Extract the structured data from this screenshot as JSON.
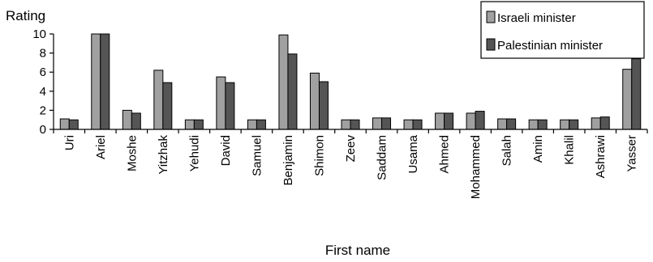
{
  "chart_data": {
    "type": "bar",
    "title": "",
    "xlabel": "First name",
    "ylabel": "Rating",
    "ylim": [
      0,
      10
    ],
    "yticks": [
      0,
      2,
      4,
      6,
      8,
      10
    ],
    "legend_position": "top-right",
    "grid": false,
    "categories": [
      "Uri",
      "Ariel",
      "Moshe",
      "Yitzhak",
      "Yehudi",
      "David",
      "Samuel",
      "Benjamin",
      "Shimon",
      "Zeev",
      "Saddam",
      "Usama",
      "Ahmed",
      "Mohammed",
      "Salah",
      "Amin",
      "Khalil",
      "Ashrawi",
      "Yasser"
    ],
    "series": [
      {
        "name": "Israeli minister",
        "color": "#a0a0a0",
        "values": [
          1.1,
          10.0,
          2.0,
          6.2,
          1.0,
          5.5,
          1.0,
          9.9,
          5.9,
          1.0,
          1.2,
          1.0,
          1.7,
          1.7,
          1.1,
          1.0,
          1.0,
          1.2,
          6.3
        ]
      },
      {
        "name": "Palestinian minister",
        "color": "#555555",
        "values": [
          1.0,
          10.0,
          1.7,
          4.9,
          1.0,
          4.9,
          1.0,
          7.9,
          5.0,
          1.0,
          1.2,
          1.0,
          1.7,
          1.9,
          1.1,
          1.0,
          1.0,
          1.3,
          7.4
        ]
      }
    ]
  }
}
